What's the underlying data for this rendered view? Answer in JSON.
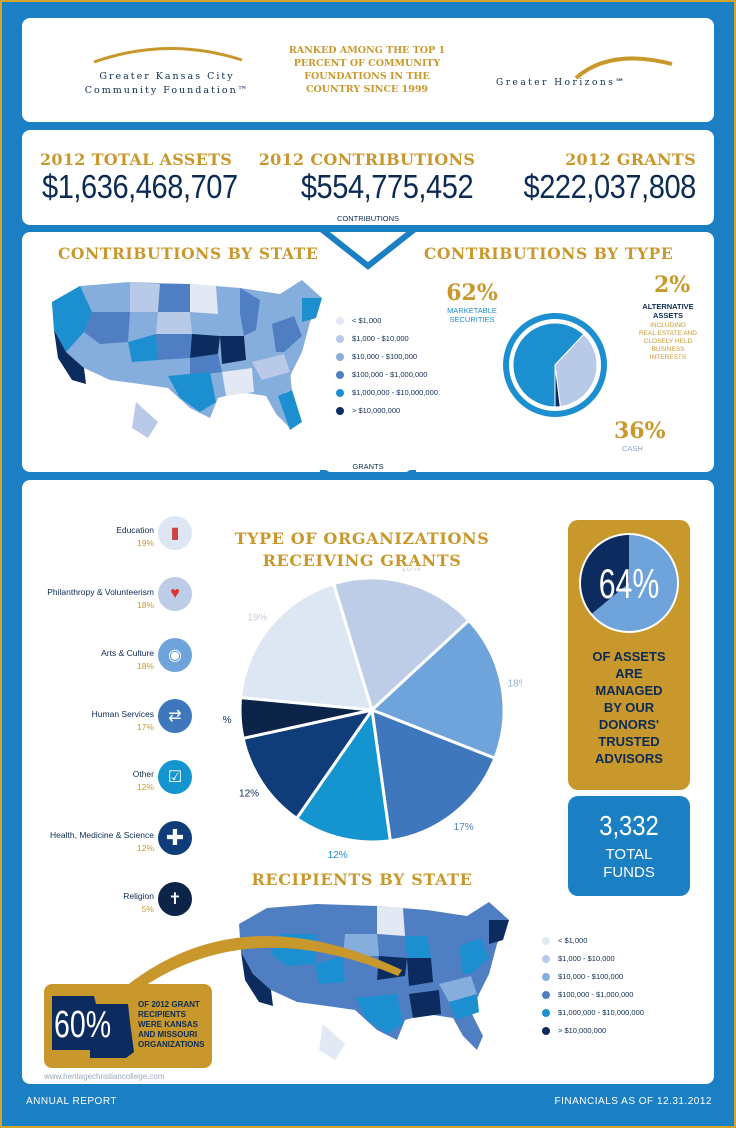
{
  "header": {
    "left_logo": [
      "Greater Kansas City",
      "Community Foundation™"
    ],
    "tagline": [
      "RANKED AMONG THE TOP 1",
      "PERCENT OF COMMUNITY",
      "FOUNDATIONS IN THE",
      "COUNTRY SINCE 1999"
    ],
    "right_logo": "Greater Horizons℠"
  },
  "stats": {
    "assets_label": "2012 TOTAL ASSETS",
    "assets_value": "$1,636,468,707",
    "contrib_label": "2012 CONTRIBUTIONS",
    "contrib_value": "$554,775,452",
    "grants_label": "2012 GRANTS",
    "grants_value": "$222,037,808",
    "contrib_tab": "CONTRIBUTIONS",
    "grants_tab": "GRANTS"
  },
  "contrib_state": {
    "title": "CONTRIBUTIONS BY STATE"
  },
  "contrib_type": {
    "title": "CONTRIBUTIONS BY TYPE",
    "p62": "62%",
    "p62_label": [
      "MARKETABLE",
      "SECURITIES"
    ],
    "p2": "2%",
    "p2_label": [
      "ALTERNATIVE",
      "ASSETS"
    ],
    "p2_sub": [
      "INCLUDING",
      "REAL ESTATE AND",
      "CLOSELY HELD",
      "BUSINESS",
      "INTERESTS"
    ],
    "p36": "36%",
    "p36_label": "CASH"
  },
  "legend": [
    {
      "label": "< $1,000",
      "color": "#e2e8f4"
    },
    {
      "label": "$1,000 - $10,000",
      "color": "#b9c9e8"
    },
    {
      "label": "$10,000 - $100,000",
      "color": "#86aedc"
    },
    {
      "label": "$100,000 - $1,000,000",
      "color": "#4f7fc2"
    },
    {
      "label": "$1,000,000 - $10,000,000",
      "color": "#1b8fd0"
    },
    {
      "label": "> $10,000,000",
      "color": "#0c2b5e"
    }
  ],
  "org": {
    "title": [
      "TYPE OF ORGANIZATIONS",
      "RECEIVING GRANTS"
    ],
    "categories": [
      {
        "name": "Education",
        "pct": "19%",
        "icon": "book-icon",
        "glyph": "📕",
        "bg": "#dde6f3",
        "fg": "#c44"
      },
      {
        "name": "Philanthropy & Volunteerism",
        "pct": "18%",
        "icon": "heart-hand-icon",
        "glyph": "♥",
        "bg": "#bdcde8",
        "fg": "#d33"
      },
      {
        "name": "Arts & Culture",
        "pct": "18%",
        "icon": "palette-icon",
        "glyph": "🎨",
        "bg": "#6ea3dc",
        "fg": "#fff"
      },
      {
        "name": "Human Services",
        "pct": "17%",
        "icon": "handshake-icon",
        "glyph": "🤝",
        "bg": "#3f77bd",
        "fg": "#fff"
      },
      {
        "name": "Other",
        "pct": "12%",
        "icon": "checkbox-icon",
        "glyph": "☑",
        "bg": "#1595cf",
        "fg": "#fff"
      },
      {
        "name": "Health, Medicine & Science",
        "pct": "12%",
        "icon": "medical-cross-icon",
        "glyph": "✚",
        "bg": "#0f3d7a",
        "fg": "#fff"
      },
      {
        "name": "Religion",
        "pct": "5%",
        "icon": "cross-icon",
        "glyph": "✝",
        "bg": "#0b2447",
        "fg": "#fff"
      }
    ]
  },
  "managed": {
    "pct": "64%",
    "text": [
      "OF ASSETS",
      "ARE",
      "MANAGED",
      "BY OUR",
      "DONORS'",
      "TRUSTED",
      "ADVISORS"
    ]
  },
  "funds": {
    "value": "3,332",
    "label": [
      "TOTAL",
      "FUNDS"
    ]
  },
  "recipients": {
    "title": "RECIPIENTS BY STATE"
  },
  "kansas": {
    "pct": "60%",
    "text": [
      "OF 2012 GRANT",
      "RECIPIENTS",
      "WERE KANSAS",
      "AND MISSOURI",
      "ORGANIZATIONS"
    ]
  },
  "footer": {
    "left": "ANNUAL REPORT",
    "right": "FINANCIALS AS OF 12.31.2012"
  },
  "watermark": "www.heritagechristiancollege.com",
  "chart_data": [
    {
      "type": "pie",
      "title": "CONTRIBUTIONS BY TYPE",
      "categories": [
        "MARKETABLE SECURITIES",
        "CASH",
        "ALTERNATIVE ASSETS"
      ],
      "values": [
        62,
        36,
        2
      ]
    },
    {
      "type": "pie",
      "title": "TYPE OF ORGANIZATIONS RECEIVING GRANTS",
      "categories": [
        "Education",
        "Philanthropy & Volunteerism",
        "Arts & Culture",
        "Human Services",
        "Other",
        "Health, Medicine & Science",
        "Religion"
      ],
      "values": [
        19,
        18,
        18,
        17,
        12,
        12,
        5
      ],
      "labels": [
        "19%",
        "18%",
        "18%",
        "17%",
        "12%",
        "12%",
        "5%"
      ]
    },
    {
      "type": "pie",
      "title": "",
      "categories": [
        "Managed by donors' trusted advisors",
        "Other"
      ],
      "values": [
        64,
        36
      ]
    }
  ]
}
